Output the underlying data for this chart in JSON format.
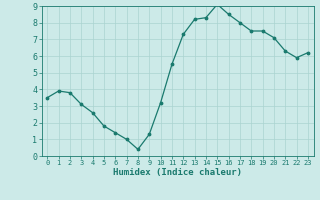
{
  "x": [
    0,
    1,
    2,
    3,
    4,
    5,
    6,
    7,
    8,
    9,
    10,
    11,
    12,
    13,
    14,
    15,
    16,
    17,
    18,
    19,
    20,
    21,
    22,
    23
  ],
  "y": [
    3.5,
    3.9,
    3.8,
    3.1,
    2.6,
    1.8,
    1.4,
    1.0,
    0.4,
    1.3,
    3.2,
    5.5,
    7.3,
    8.2,
    8.3,
    9.1,
    8.5,
    8.0,
    7.5,
    7.5,
    7.1,
    6.3,
    5.9,
    6.2
  ],
  "xlabel": "Humidex (Indice chaleur)",
  "ylim": [
    0,
    9
  ],
  "xlim_min": -0.5,
  "xlim_max": 23.5,
  "line_color": "#1a7a6e",
  "marker_color": "#1a7a6e",
  "bg_color": "#cceae8",
  "grid_color": "#aad4d0",
  "axis_color": "#1a7a6e",
  "tick_label_color": "#1a7a6e",
  "xlabel_color": "#1a7a6e",
  "yticks": [
    0,
    1,
    2,
    3,
    4,
    5,
    6,
    7,
    8,
    9
  ],
  "xticks": [
    0,
    1,
    2,
    3,
    4,
    5,
    6,
    7,
    8,
    9,
    10,
    11,
    12,
    13,
    14,
    15,
    16,
    17,
    18,
    19,
    20,
    21,
    22,
    23
  ]
}
